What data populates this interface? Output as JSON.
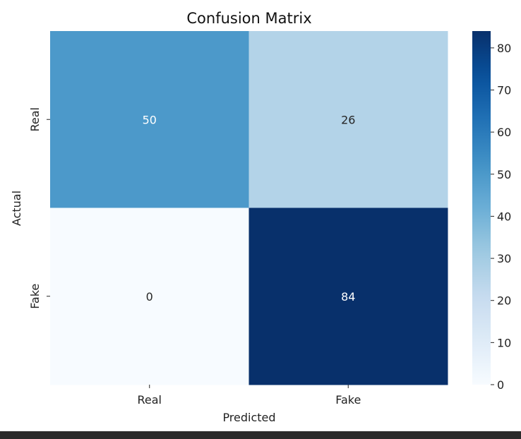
{
  "chart_data": {
    "type": "heatmap",
    "title": "Confusion Matrix",
    "xlabel": "Predicted",
    "ylabel": "Actual",
    "x_categories": [
      "Real",
      "Fake"
    ],
    "y_categories": [
      "Real",
      "Fake"
    ],
    "values": [
      [
        50,
        26
      ],
      [
        0,
        84
      ]
    ],
    "colormap": "Blues",
    "colorbar": {
      "min": 0,
      "max": 84,
      "ticks": [
        0,
        10,
        20,
        30,
        40,
        50,
        60,
        70,
        80
      ]
    },
    "annotations": true,
    "grid": false
  }
}
